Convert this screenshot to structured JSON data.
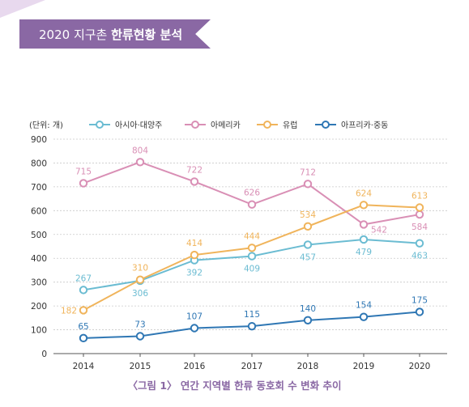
{
  "header": {
    "year_text": "2020 지구촌 ",
    "title_bold": "한류현황 분석"
  },
  "chart_data": {
    "type": "line",
    "unit_label": "(단위: 개)",
    "x": [
      "2014",
      "2015",
      "2016",
      "2017",
      "2018",
      "2019",
      "2020"
    ],
    "ylim": [
      0,
      900
    ],
    "yticks": [
      0,
      100,
      200,
      300,
      400,
      500,
      600,
      700,
      800,
      900
    ],
    "grid": true,
    "legend_position": "top",
    "series": [
      {
        "name": "아시아·대양주",
        "color": "#6bbcd2",
        "values": [
          267,
          306,
          392,
          409,
          457,
          479,
          463
        ],
        "label_pos": [
          "above",
          "below",
          "below",
          "below",
          "below",
          "below",
          "below"
        ]
      },
      {
        "name": "아메리카",
        "color": "#d98fb5",
        "values": [
          715,
          804,
          722,
          626,
          712,
          542,
          584
        ],
        "label_pos": [
          "above",
          "above",
          "above",
          "above",
          "above",
          "right",
          "below"
        ]
      },
      {
        "name": "유럽",
        "color": "#f0b45b",
        "values": [
          182,
          310,
          414,
          444,
          534,
          624,
          613
        ],
        "label_pos": [
          "left",
          "above",
          "above",
          "above",
          "above",
          "above",
          "above"
        ]
      },
      {
        "name": "아프리카·중동",
        "color": "#2f77b4",
        "values": [
          65,
          73,
          107,
          115,
          140,
          154,
          175
        ],
        "label_pos": [
          "above",
          "above",
          "above",
          "above",
          "above",
          "above",
          "above"
        ]
      }
    ]
  },
  "caption": "〈그림 1〉 연간 지역별 한류 동호회 수 변화 추이"
}
